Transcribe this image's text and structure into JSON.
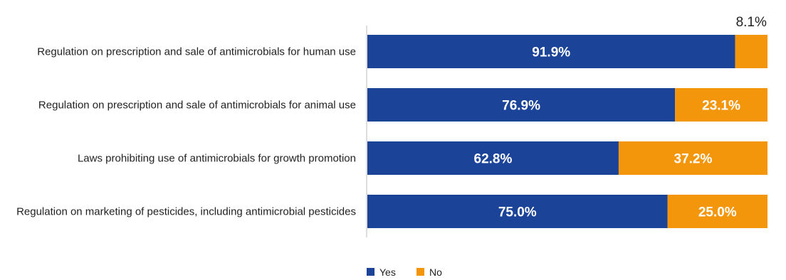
{
  "colors": {
    "yes": "#1b4499",
    "no": "#f3960b",
    "axis": "#bbbbbb"
  },
  "chart_data": {
    "type": "bar",
    "orientation": "horizontal",
    "stacked": true,
    "categories": [
      "Regulation on prescription and sale of antimicrobials for human use",
      "Regulation on prescription and sale of antimicrobials for animal use",
      "Laws prohibiting use of antimicrobials for growth promotion",
      "Regulation on marketing of pesticides, including antimicrobial pesticides"
    ],
    "series": [
      {
        "name": "Yes",
        "values": [
          91.9,
          76.9,
          62.8,
          75.0
        ],
        "labels": [
          "91.9%",
          "76.9%",
          "62.8%",
          "75.0%"
        ]
      },
      {
        "name": "No",
        "values": [
          8.1,
          23.1,
          37.2,
          25.0
        ],
        "labels": [
          "8.1%",
          "23.1%",
          "37.2%",
          "25.0%"
        ]
      }
    ],
    "xlim": [
      0,
      100
    ],
    "grid": false,
    "legend": "bottom-center"
  }
}
